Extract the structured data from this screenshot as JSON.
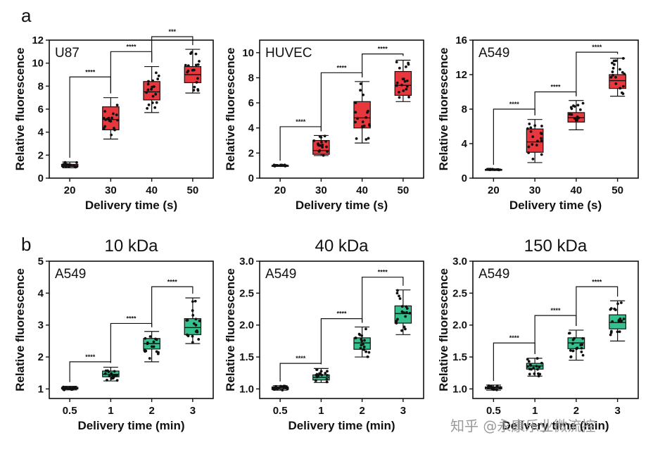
{
  "panel_labels": {
    "a": "a",
    "b": "b"
  },
  "watermark": "知乎 @永康乐业微流控",
  "colors": {
    "red": "#e8383d",
    "green": "#35c18d",
    "axis": "#111111"
  },
  "chart_data": [
    {
      "type": "box",
      "panel": "a",
      "title": "",
      "label": "U87",
      "xlabel": "Delivery time (s)",
      "ylabel": "Relative fluorescence",
      "categories": [
        "20",
        "30",
        "40",
        "50"
      ],
      "ylim": [
        0,
        12
      ],
      "yticks": [
        "0",
        "2",
        "4",
        "6",
        "8",
        "10",
        "12"
      ],
      "ytick_values": [
        0,
        2,
        4,
        6,
        8,
        10,
        12
      ],
      "color": "#e8383d",
      "boxes": [
        {
          "min": 0.9,
          "q1": 1.0,
          "median": 1.1,
          "q3": 1.2,
          "max": 1.4
        },
        {
          "min": 3.4,
          "q1": 4.2,
          "median": 5.1,
          "q3": 6.2,
          "max": 7.0
        },
        {
          "min": 5.7,
          "q1": 6.8,
          "median": 7.5,
          "q3": 8.4,
          "max": 9.7
        },
        {
          "min": 7.4,
          "q1": 8.3,
          "median": 9.0,
          "q3": 9.7,
          "max": 11.2
        }
      ],
      "significance": [
        {
          "from": 0,
          "to": 1,
          "y": 8.8,
          "label": "****"
        },
        {
          "from": 1,
          "to": 2,
          "y": 11.0,
          "label": "****"
        },
        {
          "from": 2,
          "to": 3,
          "y": 12.3,
          "label": "***"
        }
      ]
    },
    {
      "type": "box",
      "panel": "a",
      "title": "",
      "label": "HUVEC",
      "xlabel": "Delivery time (s)",
      "ylabel": "Relative fluorescence",
      "categories": [
        "20",
        "30",
        "40",
        "50"
      ],
      "ylim": [
        0,
        11
      ],
      "yticks": [
        "0",
        "2",
        "4",
        "6",
        "8",
        "10"
      ],
      "ytick_values": [
        0,
        2,
        4,
        6,
        8,
        10
      ],
      "color": "#e8383d",
      "boxes": [
        {
          "min": 0.95,
          "q1": 0.98,
          "median": 1.0,
          "q3": 1.02,
          "max": 1.05
        },
        {
          "min": 1.8,
          "q1": 1.9,
          "median": 2.2,
          "q3": 3.0,
          "max": 3.4
        },
        {
          "min": 2.8,
          "q1": 4.0,
          "median": 4.8,
          "q3": 6.1,
          "max": 7.7
        },
        {
          "min": 6.1,
          "q1": 6.6,
          "median": 7.4,
          "q3": 8.5,
          "max": 9.4
        }
      ],
      "significance": [
        {
          "from": 0,
          "to": 1,
          "y": 4.1,
          "label": "****"
        },
        {
          "from": 1,
          "to": 2,
          "y": 8.4,
          "label": "****"
        },
        {
          "from": 2,
          "to": 3,
          "y": 9.9,
          "label": "****"
        }
      ]
    },
    {
      "type": "box",
      "panel": "a",
      "title": "",
      "label": "A549",
      "xlabel": "Delivery time (s)",
      "ylabel": "Relative fluorescence",
      "categories": [
        "20",
        "30",
        "40",
        "50"
      ],
      "ylim": [
        0,
        16
      ],
      "yticks": [
        "0",
        "4",
        "8",
        "12",
        "16"
      ],
      "ytick_values": [
        0,
        4,
        8,
        12,
        16
      ],
      "color": "#e8383d",
      "boxes": [
        {
          "min": 0.95,
          "q1": 0.98,
          "median": 1.0,
          "q3": 1.02,
          "max": 1.05
        },
        {
          "min": 1.8,
          "q1": 3.0,
          "median": 4.2,
          "q3": 5.7,
          "max": 6.8
        },
        {
          "min": 5.6,
          "q1": 6.5,
          "median": 7.0,
          "q3": 7.6,
          "max": 9.0
        },
        {
          "min": 9.5,
          "q1": 10.4,
          "median": 11.3,
          "q3": 12.0,
          "max": 13.9
        }
      ],
      "significance": [
        {
          "from": 0,
          "to": 1,
          "y": 8.0,
          "label": "****"
        },
        {
          "from": 1,
          "to": 2,
          "y": 10.0,
          "label": "****"
        },
        {
          "from": 2,
          "to": 3,
          "y": 14.6,
          "label": "****"
        }
      ]
    },
    {
      "type": "box",
      "panel": "b",
      "title": "10 kDa",
      "label": "A549",
      "xlabel": "Delivery time (min)",
      "ylabel": "Relative fluorescence",
      "categories": [
        "0.5",
        "1",
        "2",
        "3"
      ],
      "ylim": [
        0.7,
        5
      ],
      "yticks": [
        "1",
        "2",
        "3",
        "4",
        "5"
      ],
      "ytick_values": [
        1,
        2,
        3,
        4,
        5
      ],
      "color": "#35c18d",
      "boxes": [
        {
          "min": 0.97,
          "q1": 1.0,
          "median": 1.02,
          "q3": 1.05,
          "max": 1.08
        },
        {
          "min": 1.25,
          "q1": 1.38,
          "median": 1.46,
          "q3": 1.56,
          "max": 1.68
        },
        {
          "min": 1.85,
          "q1": 2.25,
          "median": 2.42,
          "q3": 2.58,
          "max": 2.8
        },
        {
          "min": 2.42,
          "q1": 2.7,
          "median": 2.92,
          "q3": 3.2,
          "max": 3.85
        }
      ],
      "significance": [
        {
          "from": 0,
          "to": 1,
          "y": 1.85,
          "label": "****"
        },
        {
          "from": 1,
          "to": 2,
          "y": 3.05,
          "label": "****"
        },
        {
          "from": 2,
          "to": 3,
          "y": 4.2,
          "label": "****"
        }
      ]
    },
    {
      "type": "box",
      "panel": "b",
      "title": "40 kDa",
      "label": "A549",
      "xlabel": "Delivery time (min)",
      "ylabel": "Relative fluorescence",
      "categories": [
        "0.5",
        "1",
        "2",
        "3"
      ],
      "ylim": [
        0.85,
        3.0
      ],
      "yticks": [
        "1.0",
        "1.5",
        "2.0",
        "2.5",
        "3.0"
      ],
      "ytick_values": [
        1.0,
        1.5,
        2.0,
        2.5,
        3.0
      ],
      "color": "#35c18d",
      "boxes": [
        {
          "min": 0.98,
          "q1": 1.0,
          "median": 1.02,
          "q3": 1.03,
          "max": 1.05
        },
        {
          "min": 1.1,
          "q1": 1.14,
          "median": 1.18,
          "q3": 1.22,
          "max": 1.32
        },
        {
          "min": 1.5,
          "q1": 1.62,
          "median": 1.72,
          "q3": 1.8,
          "max": 1.97
        },
        {
          "min": 1.85,
          "q1": 2.03,
          "median": 2.18,
          "q3": 2.3,
          "max": 2.55
        }
      ],
      "significance": [
        {
          "from": 0,
          "to": 1,
          "y": 1.4,
          "label": "****"
        },
        {
          "from": 1,
          "to": 2,
          "y": 2.1,
          "label": "****"
        },
        {
          "from": 2,
          "to": 3,
          "y": 2.75,
          "label": "****"
        }
      ]
    },
    {
      "type": "box",
      "panel": "b",
      "title": "150 kDa",
      "label": "A549",
      "xlabel": "Delivery time (min)",
      "ylabel": "Relative fluorescence",
      "categories": [
        "0.5",
        "1",
        "2",
        "3"
      ],
      "ylim": [
        0.85,
        3.0
      ],
      "yticks": [
        "1.0",
        "1.5",
        "2.0",
        "2.5",
        "3.0"
      ],
      "ytick_values": [
        1.0,
        1.5,
        2.0,
        2.5,
        3.0
      ],
      "color": "#35c18d",
      "boxes": [
        {
          "min": 0.98,
          "q1": 1.0,
          "median": 1.02,
          "q3": 1.03,
          "max": 1.06
        },
        {
          "min": 1.2,
          "q1": 1.31,
          "median": 1.36,
          "q3": 1.4,
          "max": 1.48
        },
        {
          "min": 1.45,
          "q1": 1.63,
          "median": 1.72,
          "q3": 1.8,
          "max": 1.92
        },
        {
          "min": 1.75,
          "q1": 1.94,
          "median": 2.04,
          "q3": 2.16,
          "max": 2.38
        }
      ],
      "significance": [
        {
          "from": 0,
          "to": 1,
          "y": 1.72,
          "label": "****"
        },
        {
          "from": 1,
          "to": 2,
          "y": 2.15,
          "label": "****"
        },
        {
          "from": 2,
          "to": 3,
          "y": 2.6,
          "label": "****"
        }
      ]
    }
  ]
}
